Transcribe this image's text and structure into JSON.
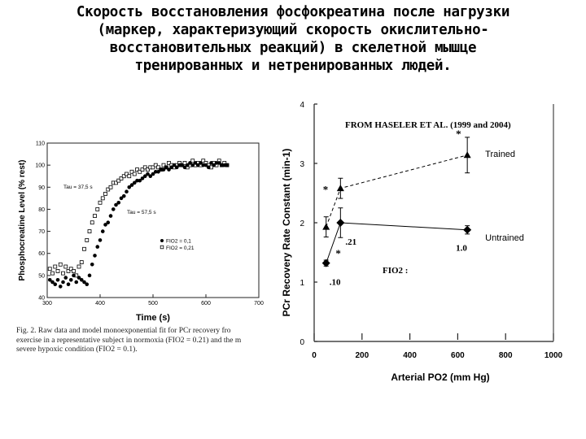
{
  "title_lines": [
    "Скорость восстановления фосфокреатина после нагрузки",
    "(маркер, характеризующий скорость окислительно-",
    "восстановительных реакций) в скелетной мышце",
    "тренированных и нетренированных людей."
  ],
  "caption_lines": [
    "Fig. 2. Raw data and model monoexponential fit for PCr recovery fro",
    "exercise in a representative subject in normoxia (FIO2 = 0.21) and the m",
    "severe hypoxic condition (FIO2 = 0.1)."
  ],
  "colors": {
    "ink": "#000000",
    "axis": "#222222"
  },
  "chart_data": [
    {
      "type": "scatter",
      "xlabel": "Time (s)",
      "ylabel": "Phosphocreatine Level (% rest)",
      "xlim": [
        300,
        700
      ],
      "ylim": [
        40,
        110
      ],
      "xticks": [
        300,
        400,
        500,
        600,
        700
      ],
      "yticks": [
        40,
        50,
        60,
        70,
        80,
        90,
        100,
        110
      ],
      "annotations": {
        "tau_open": "Tau = 37,5 s",
        "tau_filled": "Tau = 57,5 s"
      },
      "legend": {
        "filled": "FIO2 = 0,1",
        "open": "FIO2 = 0,21"
      },
      "series": [
        {
          "name": "FIO2 = 0,1",
          "marker": "filled-circle",
          "x": [
            305,
            310,
            315,
            320,
            325,
            330,
            335,
            340,
            345,
            350,
            355,
            360,
            365,
            370,
            375,
            380,
            385,
            390,
            395,
            400,
            405,
            410,
            415,
            420,
            425,
            430,
            435,
            440,
            445,
            450,
            455,
            460,
            465,
            470,
            475,
            480,
            485,
            490,
            495,
            500,
            505,
            510,
            515,
            520,
            525,
            530,
            535,
            540,
            545,
            550,
            555,
            560,
            565,
            570,
            575,
            580,
            585,
            590,
            595,
            600,
            605,
            610,
            615,
            620,
            625,
            630,
            635,
            640
          ],
          "y": [
            48,
            47,
            46,
            48,
            45,
            47,
            49,
            46,
            48,
            50,
            47,
            49,
            48,
            47,
            46,
            50,
            55,
            59,
            63,
            66,
            70,
            73,
            74,
            77,
            80,
            82,
            83,
            85,
            86,
            88,
            90,
            91,
            92,
            93,
            93,
            94,
            95,
            96,
            95,
            96,
            97,
            97,
            98,
            98,
            99,
            98,
            99,
            100,
            99,
            100,
            100,
            99,
            100,
            101,
            100,
            101,
            100,
            101,
            100,
            100,
            99,
            101,
            100,
            101,
            101,
            100,
            100,
            100
          ]
        },
        {
          "name": "FIO2 = 0,21",
          "marker": "open-square",
          "x": [
            305,
            310,
            315,
            320,
            325,
            330,
            335,
            340,
            345,
            350,
            355,
            360,
            365,
            370,
            375,
            380,
            385,
            390,
            395,
            400,
            405,
            410,
            415,
            420,
            425,
            430,
            435,
            440,
            445,
            450,
            455,
            460,
            465,
            470,
            475,
            480,
            485,
            490,
            495,
            500,
            505,
            510,
            515,
            520,
            525,
            530,
            535,
            540,
            545,
            550,
            555,
            560,
            565,
            570,
            575,
            580,
            585,
            590,
            595,
            600,
            605,
            610,
            615,
            620,
            625,
            630,
            635,
            640
          ],
          "y": [
            53,
            51,
            54,
            52,
            55,
            51,
            54,
            52,
            53,
            52,
            50,
            54,
            56,
            62,
            66,
            70,
            74,
            77,
            80,
            83,
            85,
            87,
            89,
            90,
            92,
            92,
            93,
            94,
            95,
            96,
            95,
            97,
            96,
            98,
            97,
            98,
            99,
            98,
            99,
            99,
            100,
            99,
            98,
            100,
            99,
            101,
            100,
            99,
            100,
            101,
            100,
            101,
            99,
            100,
            102,
            100,
            101,
            100,
            102,
            101,
            100,
            99,
            101,
            100,
            102,
            100,
            101,
            100
          ]
        }
      ]
    },
    {
      "type": "line",
      "title": "FROM HASELER ET AL. (1999 and 2004)",
      "xlabel": "Arterial PO2 (mm Hg)",
      "ylabel": "PCr Recovery Rate Constant (min-1)",
      "xlim": [
        0,
        1000
      ],
      "ylim": [
        0,
        4
      ],
      "xticks": [
        0,
        200,
        400,
        600,
        800,
        1000
      ],
      "yticks": [
        0,
        1,
        2,
        3,
        4
      ],
      "series": [
        {
          "name": "Trained",
          "marker": "triangle",
          "style": "dashed",
          "x": [
            50,
            110,
            640
          ],
          "y": [
            1.93,
            2.58,
            3.14
          ],
          "err": [
            0.17,
            0.17,
            0.3
          ]
        },
        {
          "name": "Untrained",
          "marker": "diamond",
          "style": "solid",
          "x": [
            50,
            110,
            640
          ],
          "y": [
            1.32,
            2.0,
            1.88
          ],
          "err": [
            0.05,
            0.25,
            0.07
          ]
        }
      ],
      "fio2_label": "FIO2 :",
      "fio2_values": [
        ".10",
        ".21",
        "1.0"
      ],
      "asterisk": "*"
    }
  ]
}
